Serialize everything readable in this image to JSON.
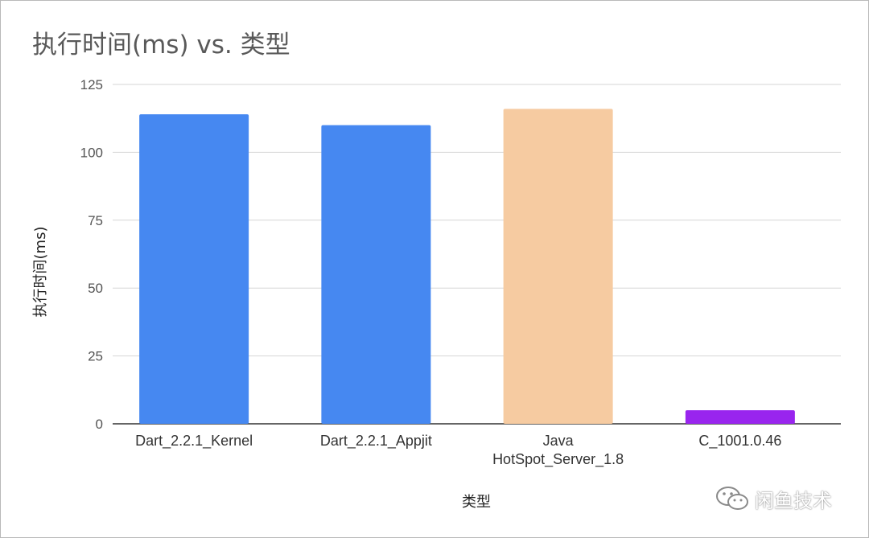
{
  "chart_data": {
    "type": "bar",
    "title": "执行时间(ms) vs. 类型",
    "xlabel": "类型",
    "ylabel": "执行时间(ms)",
    "ylim": [
      0,
      125
    ],
    "yticks": [
      0,
      25,
      50,
      75,
      100,
      125
    ],
    "grid": true,
    "categories": [
      [
        "Dart_2.2.1_Kernel"
      ],
      [
        "Dart_2.2.1_Appjit"
      ],
      [
        "Java",
        "HotSpot_Server_1.8"
      ],
      [
        "C_1001.0.46"
      ]
    ],
    "values": [
      114,
      110,
      116,
      5
    ],
    "colors": [
      "#4688f1",
      "#4688f1",
      "#f6cba1",
      "#9925ee"
    ]
  },
  "watermark": {
    "text": "闲鱼技术",
    "icon": "wechat-icon"
  }
}
